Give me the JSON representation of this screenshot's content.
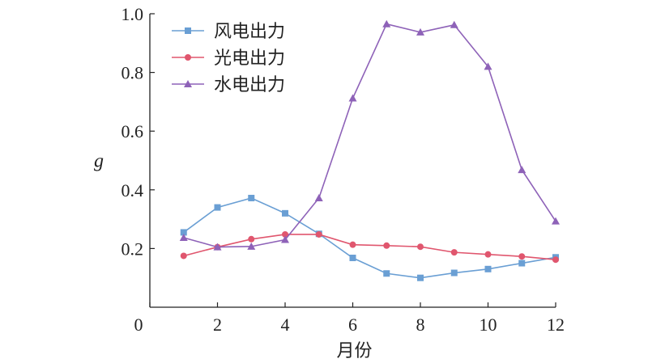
{
  "chart_data": {
    "type": "line",
    "title": "",
    "xlabel": "月份",
    "ylabel": "g",
    "x": [
      1,
      2,
      3,
      4,
      5,
      6,
      7,
      8,
      9,
      10,
      11,
      12
    ],
    "xlim": [
      0,
      12
    ],
    "ylim": [
      0,
      1.0
    ],
    "xticks": [
      "0",
      "2",
      "4",
      "6",
      "8",
      "10",
      "12"
    ],
    "yticks": [
      "0.2",
      "0.4",
      "0.6",
      "0.8",
      "1.0"
    ],
    "grid": false,
    "legend_position": "top-left",
    "series": [
      {
        "name": "风电出力",
        "color": "#6a9fd4",
        "marker": "square",
        "values": [
          0.255,
          0.34,
          0.372,
          0.32,
          0.25,
          0.168,
          0.115,
          0.1,
          0.117,
          0.13,
          0.15,
          0.17
        ]
      },
      {
        "name": "光电出力",
        "color": "#e0566e",
        "marker": "circle",
        "values": [
          0.175,
          0.205,
          0.232,
          0.248,
          0.248,
          0.213,
          0.21,
          0.206,
          0.187,
          0.18,
          0.173,
          0.162
        ]
      },
      {
        "name": "水电出力",
        "color": "#8e62b8",
        "marker": "triangle",
        "values": [
          0.237,
          0.205,
          0.207,
          0.23,
          0.372,
          0.712,
          0.965,
          0.937,
          0.962,
          0.82,
          0.468,
          0.293
        ]
      }
    ]
  }
}
